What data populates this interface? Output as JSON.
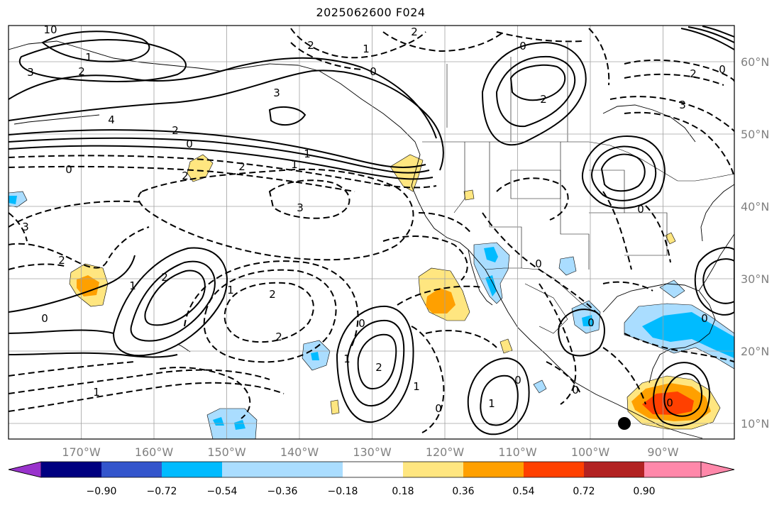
{
  "title": "2025062600 F024",
  "map": {
    "lon_labels": [
      "170°W",
      "160°W",
      "150°W",
      "140°W",
      "130°W",
      "120°W",
      "110°W",
      "100°W",
      "90°W"
    ],
    "lat_labels": [
      "60°N",
      "50°N",
      "40°N",
      "30°N",
      "20°N",
      "10°N"
    ],
    "gridline_color": "#a0a0a0",
    "contour_labels": [
      {
        "text": "0",
        "name": "contour-label-0-a"
      },
      {
        "text": "1",
        "name": "contour-label-1-a"
      },
      {
        "text": "2",
        "name": "contour-label-2-a"
      },
      {
        "text": "3",
        "name": "contour-label-3-a"
      },
      {
        "text": "4",
        "name": "contour-label-4-a"
      },
      {
        "text": "2",
        "name": "contour-label-2-b"
      },
      {
        "text": "0",
        "name": "contour-label-0-b"
      },
      {
        "text": "0",
        "name": "contour-label-0-c"
      },
      {
        "text": "2",
        "name": "contour-label-2-c"
      },
      {
        "text": "1",
        "name": "contour-label-1-b"
      },
      {
        "text": "3",
        "name": "contour-label-3-b"
      },
      {
        "text": "2",
        "name": "contour-label-2-d"
      },
      {
        "text": "1",
        "name": "contour-label-1-c"
      },
      {
        "text": "0",
        "name": "contour-label-0-d"
      },
      {
        "text": "2",
        "name": "contour-label-2-e"
      },
      {
        "text": "3",
        "name": "contour-label-3-c"
      },
      {
        "text": "3",
        "name": "contour-label-3-d"
      },
      {
        "text": "2",
        "name": "contour-label-2-f"
      },
      {
        "text": "1",
        "name": "contour-label-1-d"
      },
      {
        "text": "0",
        "name": "contour-label-0-e"
      },
      {
        "text": "2",
        "name": "contour-label-2-g"
      },
      {
        "text": "2",
        "name": "contour-label-2-h"
      },
      {
        "text": "1",
        "name": "contour-label-1-e"
      },
      {
        "text": "2",
        "name": "contour-label-2-i"
      },
      {
        "text": "1",
        "name": "contour-label-1-f"
      },
      {
        "text": "0",
        "name": "contour-label-0-f"
      },
      {
        "text": "1",
        "name": "contour-label-1-g"
      },
      {
        "text": "2",
        "name": "contour-label-2-j"
      },
      {
        "text": "1",
        "name": "contour-label-1-h"
      },
      {
        "text": "0",
        "name": "contour-label-0-g"
      },
      {
        "text": "0",
        "name": "contour-label-0-h"
      },
      {
        "text": "0",
        "name": "contour-label-0-i"
      },
      {
        "text": "0",
        "name": "contour-label-0-j"
      },
      {
        "text": "2",
        "name": "contour-label-2-k"
      },
      {
        "text": "0",
        "name": "contour-label-0-k"
      },
      {
        "text": "0",
        "name": "contour-label-0-l"
      },
      {
        "text": "3",
        "name": "contour-label-3-e"
      },
      {
        "text": "2",
        "name": "contour-label-2-l"
      },
      {
        "text": "0",
        "name": "contour-label-0-m"
      },
      {
        "text": "10",
        "name": "contour-label-10"
      },
      {
        "text": "1",
        "name": "contour-label-1-i"
      },
      {
        "text": "0",
        "name": "contour-label-0-n"
      },
      {
        "text": "0",
        "name": "contour-label-0-o"
      },
      {
        "text": "1",
        "name": "contour-label-1-j"
      },
      {
        "text": "2",
        "name": "contour-label-2-m"
      }
    ]
  },
  "colorbar": {
    "colors": [
      "#9933cc",
      "#000080",
      "#3355cc",
      "#00bbff",
      "#aaddff",
      "#ffffff",
      "#ffe680",
      "#ffa000",
      "#ff4000",
      "#b22222",
      "#ff88aa"
    ],
    "tick_labels": [
      "−0.90",
      "−0.72",
      "−0.54",
      "−0.36",
      "−0.18",
      "0.18",
      "0.36",
      "0.54",
      "0.72",
      "0.90"
    ]
  }
}
